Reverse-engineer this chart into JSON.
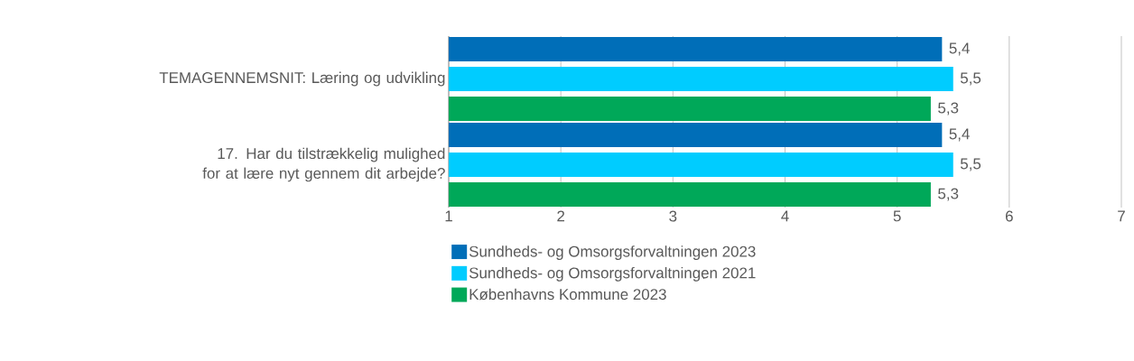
{
  "chart_data": {
    "type": "bar",
    "orientation": "horizontal",
    "categories": [
      "TEMAGENNEMSNIT: Læring og udvikling",
      "17. Har du tilstrækkelig mulighed for at lære nyt gennem dit arbejde?"
    ],
    "series": [
      {
        "name": "Sundheds- og Omsorgsforvaltningen 2023",
        "color": "#006eb8",
        "values": [
          5.4,
          5.4
        ],
        "value_labels": [
          "5,4",
          "5,4"
        ]
      },
      {
        "name": "Sundheds- og Omsorgsforvaltningen 2021",
        "color": "#00ccff",
        "values": [
          5.5,
          5.5
        ],
        "value_labels": [
          "5,5",
          "5,5"
        ]
      },
      {
        "name": "Københavns Kommune 2023",
        "color": "#00a859",
        "values": [
          5.3,
          5.3
        ],
        "value_labels": [
          "5,3",
          "5,3"
        ]
      }
    ],
    "xlim": [
      1,
      7
    ],
    "xticks": [
      1,
      2,
      3,
      4,
      5,
      6,
      7
    ],
    "grid": "x",
    "legend": "bottom"
  }
}
